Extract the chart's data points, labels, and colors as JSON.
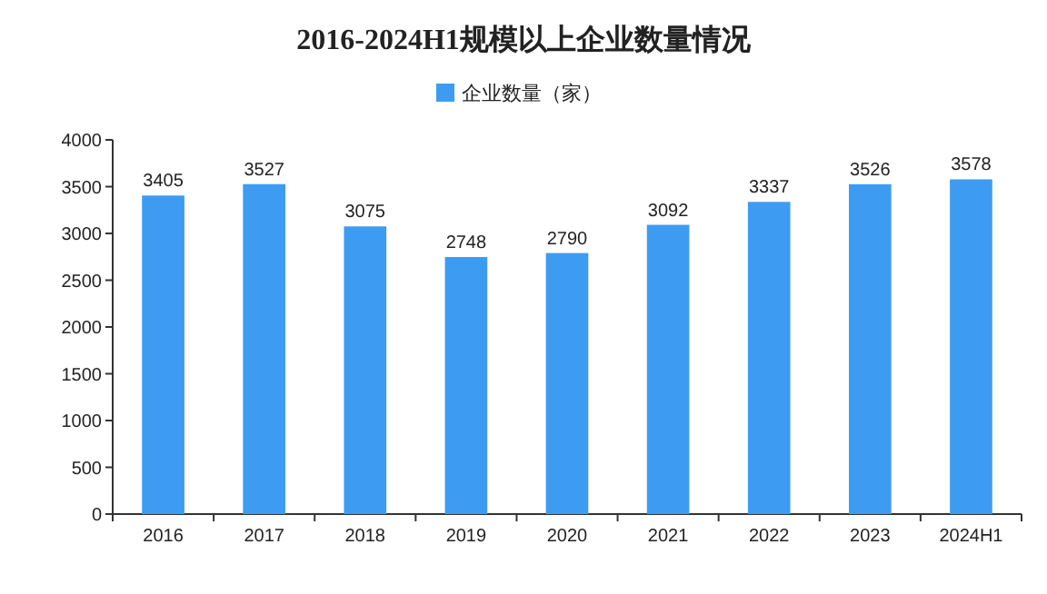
{
  "chart_data": {
    "type": "bar",
    "title": "2016-2024H1规模以上企业数量情况",
    "categories": [
      "2016",
      "2017",
      "2018",
      "2019",
      "2020",
      "2021",
      "2022",
      "2023",
      "2024H1"
    ],
    "series": [
      {
        "name": "企业数量（家）",
        "color": "#3d9cf2",
        "values": [
          3405,
          3527,
          3075,
          2748,
          2790,
          3092,
          3337,
          3526,
          3578
        ]
      }
    ],
    "ylim": [
      0,
      4000
    ],
    "yticks": [
      0,
      500,
      1000,
      1500,
      2000,
      2500,
      3000,
      3500,
      4000
    ],
    "data_labels": true,
    "legend": "top",
    "grid": false
  }
}
